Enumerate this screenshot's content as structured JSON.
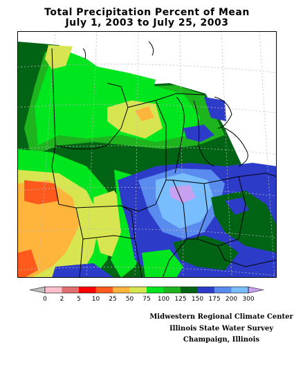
{
  "title": {
    "line1": "Total Precipitation Percent of Mean",
    "line2": "July 1, 2003 to July 25, 2003"
  },
  "legend": {
    "ticks": [
      "0",
      "2",
      "5",
      "10",
      "25",
      "50",
      "75",
      "100",
      "125",
      "150",
      "175",
      "200",
      "300"
    ],
    "colors": [
      "#ffc0cb",
      "#e07070",
      "#ff0000",
      "#ff5a1e",
      "#ffb43c",
      "#d7e650",
      "#00e61e",
      "#1eb41e",
      "#006414",
      "#2d3cc8",
      "#5a8cf0",
      "#78beff",
      "#c8a0f0"
    ],
    "underflow_color": "#c0c0c0",
    "overflow_color": "#c8a0f0"
  },
  "credits": {
    "line1": "Midwestern Regional Climate Center",
    "line2": "Illinois State Water Survey",
    "line3": "Champaign, Illinois"
  }
}
